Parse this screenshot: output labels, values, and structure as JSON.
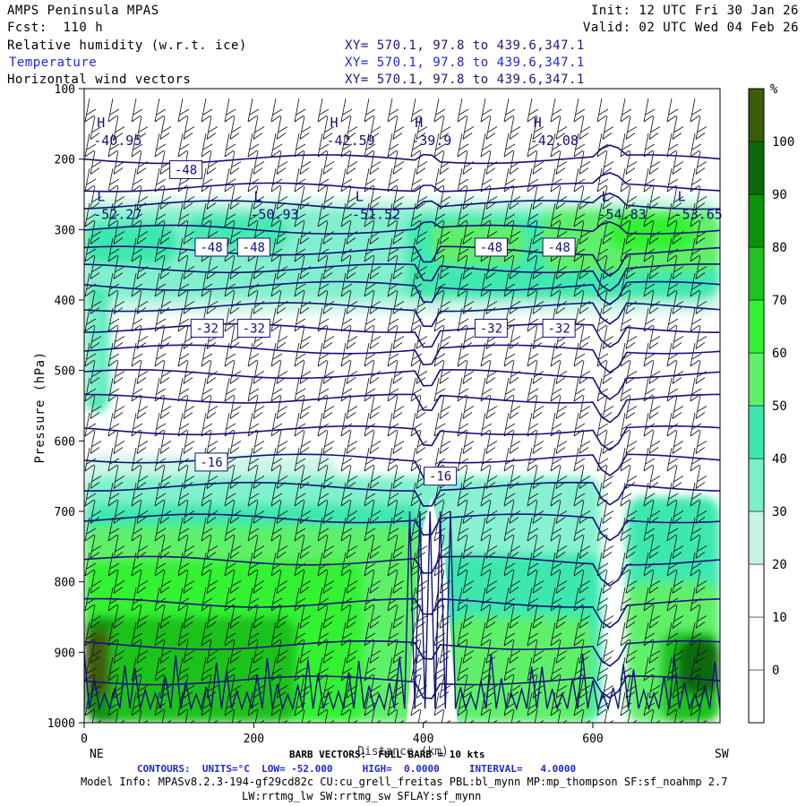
{
  "header": {
    "model": "AMPS Peninsula MPAS",
    "fcst": "Fcst:  110 h",
    "init": "Init: 12 UTC Fri 30 Jan 26",
    "valid": "Valid: 02 UTC Wed 04 Feb 26",
    "fields": [
      {
        "name": "Relative humidity (w.r.t. ice)",
        "xy": "XY= 570.1, 97.8 to 439.6,347.1"
      },
      {
        "name": "Temperature",
        "xy": "XY= 570.1, 97.8 to 439.6,347.1"
      },
      {
        "name": "Horizontal wind vectors",
        "xy": "XY= 570.1, 97.8 to 439.6,347.1"
      }
    ]
  },
  "footer": {
    "barb": "BARB VECTORS:  FULL BARB = 10 kts",
    "contours": "CONTOURS:  UNITS=°C  LOW= -52.000     HIGH=  0.0000     INTERVAL=   4.0000",
    "model_info": "Model Info: MPASv8.2.3-194-gf29cd82c CU:cu_grell_freitas PBL:bl_mynn MP:mp_thompson SF:sf_noahmp 2.7",
    "model_info2": "LW:rrtmg_lw SW:rrtmg_sw SFLAY:sf_mynn"
  },
  "chart_data": {
    "type": "heatmap",
    "ylabel": "Pressure (hPa)",
    "xlabel": "Distance (km)",
    "x_left_label": "NE",
    "x_right_label": "SW",
    "xlim": [
      0,
      750
    ],
    "ylim": [
      1000,
      100
    ],
    "xticks": [
      "0",
      "200",
      "400",
      "600"
    ],
    "xtick_values": [
      0,
      200,
      400,
      600
    ],
    "yticks": [
      "100",
      "200",
      "300",
      "400",
      "500",
      "600",
      "700",
      "800",
      "900",
      "1000"
    ],
    "ytick_values": [
      100,
      200,
      300,
      400,
      500,
      600,
      700,
      800,
      900,
      1000
    ],
    "colorbar": {
      "unit": "%",
      "labels": [
        "0",
        "10",
        "20",
        "30",
        "40",
        "50",
        "60",
        "70",
        "80",
        "90",
        "100"
      ],
      "values": [
        0,
        10,
        20,
        30,
        40,
        50,
        60,
        70,
        80,
        90,
        100
      ],
      "colors": [
        "#ffffff",
        "#ffffff",
        "#ffffff",
        "#c6f5e6",
        "#7af0cc",
        "#3de8b0",
        "#5ff06a",
        "#33f233",
        "#1fc21f",
        "#0a920a",
        "#0a6a0a",
        "#3d5c0a"
      ]
    },
    "contour_labels": [
      {
        "text": "-48",
        "x": 120,
        "p": 215
      },
      {
        "text": "-48",
        "x": 150,
        "p": 325
      },
      {
        "text": "-48",
        "x": 200,
        "p": 325
      },
      {
        "text": "-48",
        "x": 480,
        "p": 325
      },
      {
        "text": "-48",
        "x": 560,
        "p": 325
      },
      {
        "text": "-32",
        "x": 145,
        "p": 440
      },
      {
        "text": "-32",
        "x": 200,
        "p": 440
      },
      {
        "text": "-32",
        "x": 480,
        "p": 440
      },
      {
        "text": "-32",
        "x": 560,
        "p": 440
      },
      {
        "text": "-16",
        "x": 150,
        "p": 630
      },
      {
        "text": "-16",
        "x": 420,
        "p": 650
      }
    ],
    "extrema": [
      {
        "type": "H",
        "value": "-40.95",
        "x": 15,
        "p": 170
      },
      {
        "type": "H",
        "value": "-42.59",
        "x": 290,
        "p": 170
      },
      {
        "type": "H",
        "value": "-39.9",
        "x": 390,
        "p": 170
      },
      {
        "type": "H",
        "value": "-42.08",
        "x": 530,
        "p": 170
      },
      {
        "type": "L",
        "value": "-52.27",
        "x": 15,
        "p": 275
      },
      {
        "type": "L",
        "value": "-50.93",
        "x": 200,
        "p": 275
      },
      {
        "type": "L",
        "value": "-51.52",
        "x": 320,
        "p": 275
      },
      {
        "type": "L",
        "value": "-54.83",
        "x": 610,
        "p": 275
      },
      {
        "type": "L",
        "value": "-53.65",
        "x": 700,
        "p": 275
      }
    ]
  }
}
